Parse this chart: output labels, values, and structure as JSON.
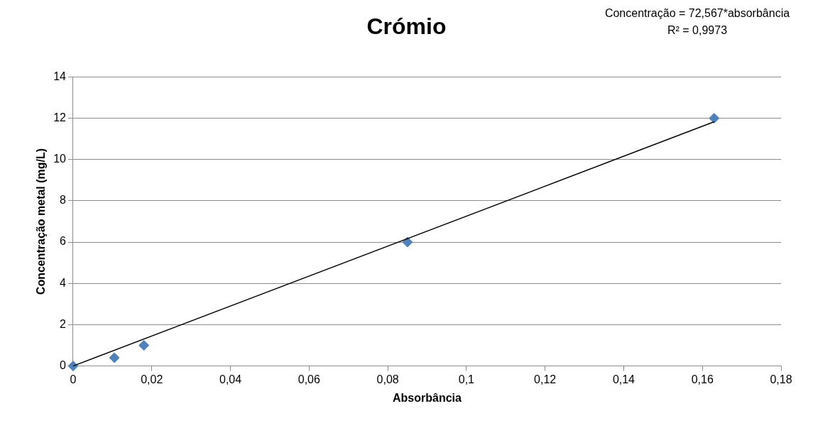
{
  "chart_data": {
    "type": "scatter",
    "title": "Crómio",
    "xlabel": "Absorbância",
    "ylabel": "Concentração metal (mg/L)",
    "annotations": [
      "Concentração = 72,567*absorbância",
      "R² = 0,9973"
    ],
    "marker": "diamond",
    "grid": "y",
    "legend": false,
    "xlim": [
      0,
      0.18
    ],
    "xticks": [
      0,
      {
        "value": 0.02,
        "label": "0,02"
      },
      {
        "value": 0.04,
        "label": "0,04"
      },
      {
        "value": 0.06,
        "label": "0,06"
      },
      {
        "value": 0.08,
        "label": "0,08"
      },
      {
        "value": 0.1,
        "label": "0,1"
      },
      {
        "value": 0.12,
        "label": "0,12"
      },
      {
        "value": 0.14,
        "label": "0,14"
      },
      {
        "value": 0.16,
        "label": "0,16"
      },
      {
        "value": 0.18,
        "label": "0,18"
      }
    ],
    "ylim": [
      0,
      14
    ],
    "yticks": [
      0,
      2,
      4,
      6,
      8,
      10,
      12,
      14
    ],
    "series": [
      {
        "color": "#4f81bd",
        "x": [
          0,
          0.0105,
          0.018,
          0.085,
          0.163
        ],
        "values": [
          0,
          0.4,
          1,
          6,
          12
        ]
      },
      {
        "type": "line",
        "color": "#000000",
        "marker": "none",
        "x": [
          0,
          0.163
        ],
        "values": [
          0,
          11.83
        ]
      }
    ]
  }
}
